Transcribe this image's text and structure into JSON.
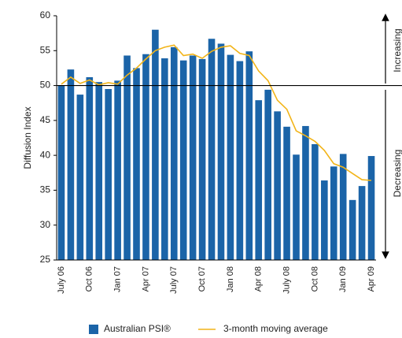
{
  "chart_data": {
    "type": "bar",
    "y_label": "Diffusion Index",
    "categories": [
      "July 06",
      null,
      null,
      "Oct 06",
      null,
      null,
      "Jan 07",
      null,
      null,
      "Apr 07",
      null,
      null,
      "July 07",
      null,
      null,
      "Oct 07",
      null,
      null,
      "Jan 08",
      null,
      null,
      "Apr 08",
      null,
      null,
      "July 08",
      null,
      null,
      "Oct 08",
      null,
      null,
      "Jan 09",
      null,
      null,
      "Apr 09"
    ],
    "series": [
      {
        "name": "Australian PSI®",
        "type": "bar",
        "color": "#1b64a8",
        "values": [
          50.0,
          52.3,
          48.7,
          51.2,
          50.5,
          49.5,
          50.7,
          54.3,
          52.5,
          54.5,
          58.0,
          53.9,
          55.5,
          53.6,
          54.3,
          53.8,
          56.7,
          56.0,
          54.4,
          53.5,
          54.9,
          47.9,
          49.4,
          46.3,
          44.1,
          40.1,
          44.2,
          41.6,
          36.4,
          38.4,
          40.2,
          33.6,
          35.6,
          39.9
        ]
      },
      {
        "name": "3-month moving average",
        "type": "line",
        "color": "#f2b418",
        "values": [
          50.2,
          51.2,
          50.3,
          50.8,
          50.1,
          50.4,
          50.2,
          51.5,
          52.5,
          53.8,
          55.0,
          55.5,
          55.8,
          54.3,
          54.5,
          53.9,
          54.9,
          55.5,
          55.7,
          54.6,
          54.3,
          52.1,
          50.7,
          47.9,
          46.6,
          43.5,
          42.8,
          42.0,
          40.7,
          38.8,
          38.3,
          37.4,
          36.5,
          36.4
        ]
      }
    ],
    "ylim": [
      25,
      60
    ],
    "yticks": [
      25,
      30,
      35,
      40,
      45,
      50,
      55,
      60
    ],
    "reference_line": 50,
    "annotations": [
      "Increasing",
      "Decreasing"
    ],
    "legend": "bottom"
  }
}
